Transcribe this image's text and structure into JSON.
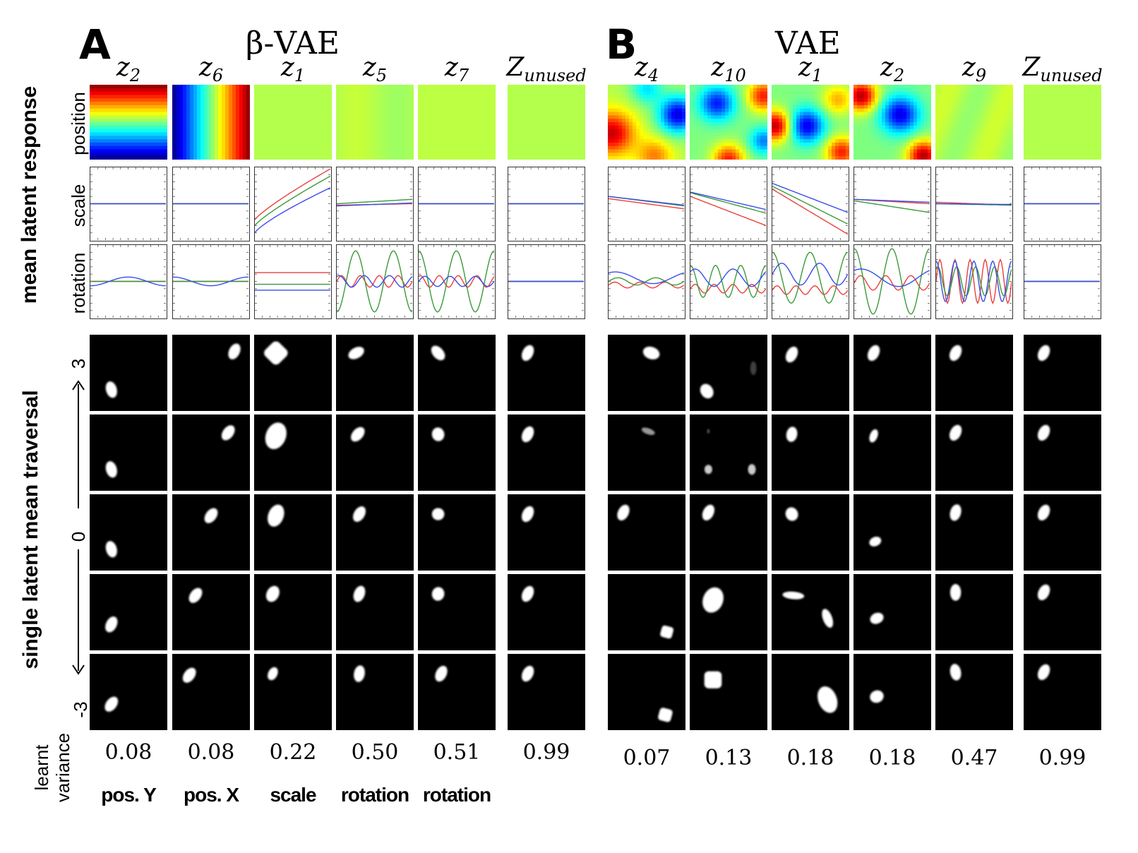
{
  "panels": [
    {
      "letter": "A",
      "title": "β-VAE",
      "columns": [
        {
          "sym": "z",
          "sub": "2",
          "variance": "0.08",
          "factor": "pos. Y"
        },
        {
          "sym": "z",
          "sub": "6",
          "variance": "0.08",
          "factor": "pos. X"
        },
        {
          "sym": "z",
          "sub": "1",
          "variance": "0.22",
          "factor": "scale"
        },
        {
          "sym": "z",
          "sub": "5",
          "variance": "0.50",
          "factor": "rotation"
        },
        {
          "sym": "z",
          "sub": "7",
          "variance": "0.51",
          "factor": "rotation"
        },
        {
          "sym": "Z",
          "sub": "unused",
          "variance": "0.99",
          "factor": ""
        }
      ]
    },
    {
      "letter": "B",
      "title": "VAE",
      "columns": [
        {
          "sym": "z",
          "sub": "4",
          "variance": "0.07",
          "factor": ""
        },
        {
          "sym": "z",
          "sub": "10",
          "variance": "0.13",
          "factor": ""
        },
        {
          "sym": "z",
          "sub": "1",
          "variance": "0.18",
          "factor": ""
        },
        {
          "sym": "z",
          "sub": "2",
          "variance": "0.18",
          "factor": ""
        },
        {
          "sym": "z",
          "sub": "9",
          "variance": "0.47",
          "factor": ""
        },
        {
          "sym": "Z",
          "sub": "unused",
          "variance": "0.99",
          "factor": ""
        }
      ]
    }
  ],
  "labels": {
    "mean_latent_response": "mean latent response",
    "single_latent_traversal": "single latent mean traversal",
    "learnt_variance_line1": "learnt",
    "learnt_variance_line2": "variance",
    "row_position": "position",
    "row_scale": "scale",
    "row_rotation": "rotation",
    "tick_top": "3",
    "tick_mid": "0",
    "tick_bottom": "-3"
  },
  "colors": {
    "line_red": "#e8413b",
    "line_green": "#3a9a3a",
    "line_blue": "#3a4de8",
    "heatmap_flat": "#86f07a"
  }
}
